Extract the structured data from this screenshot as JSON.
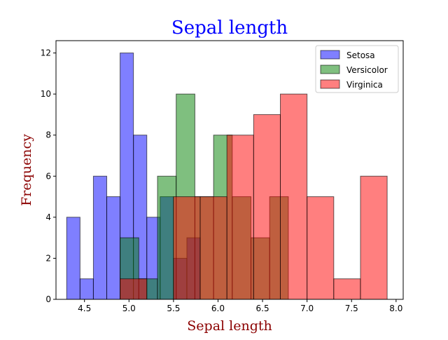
{
  "chart_data": {
    "type": "histogram",
    "title": "Sepal length",
    "title_color": "#0000ff",
    "xlabel": "Sepal length",
    "ylabel": "Frequency",
    "label_color": "#8b0000",
    "xlim": [
      4.18,
      8.08
    ],
    "ylim": [
      0,
      12.6
    ],
    "xticks": [
      "4.5",
      "5.0",
      "5.5",
      "6.0",
      "6.5",
      "7.0",
      "7.5",
      "8.0"
    ],
    "yticks": [
      "0",
      "2",
      "4",
      "6",
      "8",
      "10",
      "12"
    ],
    "xtick_values": [
      4.5,
      5.0,
      5.5,
      6.0,
      6.5,
      7.0,
      7.5,
      8.0
    ],
    "ytick_values": [
      0,
      2,
      4,
      6,
      8,
      10,
      12
    ],
    "grid": false,
    "legend_position": "top-right",
    "series": [
      {
        "name": "Setosa",
        "color": "#0000ff",
        "bin_edges": [
          4.3,
          4.45,
          4.6,
          4.75,
          4.9,
          5.05,
          5.2,
          5.35,
          5.5,
          5.65,
          5.8
        ],
        "counts": [
          4,
          1,
          6,
          5,
          12,
          8,
          4,
          5,
          2,
          3
        ]
      },
      {
        "name": "Versicolor",
        "color": "#008000",
        "bin_edges": [
          4.9,
          5.11,
          5.32,
          5.53,
          5.74,
          5.95,
          6.16,
          6.37,
          6.58,
          6.79,
          7.0
        ],
        "counts": [
          3,
          1,
          6,
          10,
          5,
          8,
          5,
          3,
          5,
          0
        ]
      },
      {
        "name": "Virginica",
        "color": "#ff0000",
        "bin_edges": [
          4.9,
          5.2,
          5.5,
          5.8,
          6.1,
          6.4,
          6.7,
          7.0,
          7.3,
          7.6,
          7.9
        ],
        "counts": [
          1,
          0,
          5,
          5,
          8,
          9,
          10,
          5,
          1,
          6
        ]
      }
    ]
  }
}
